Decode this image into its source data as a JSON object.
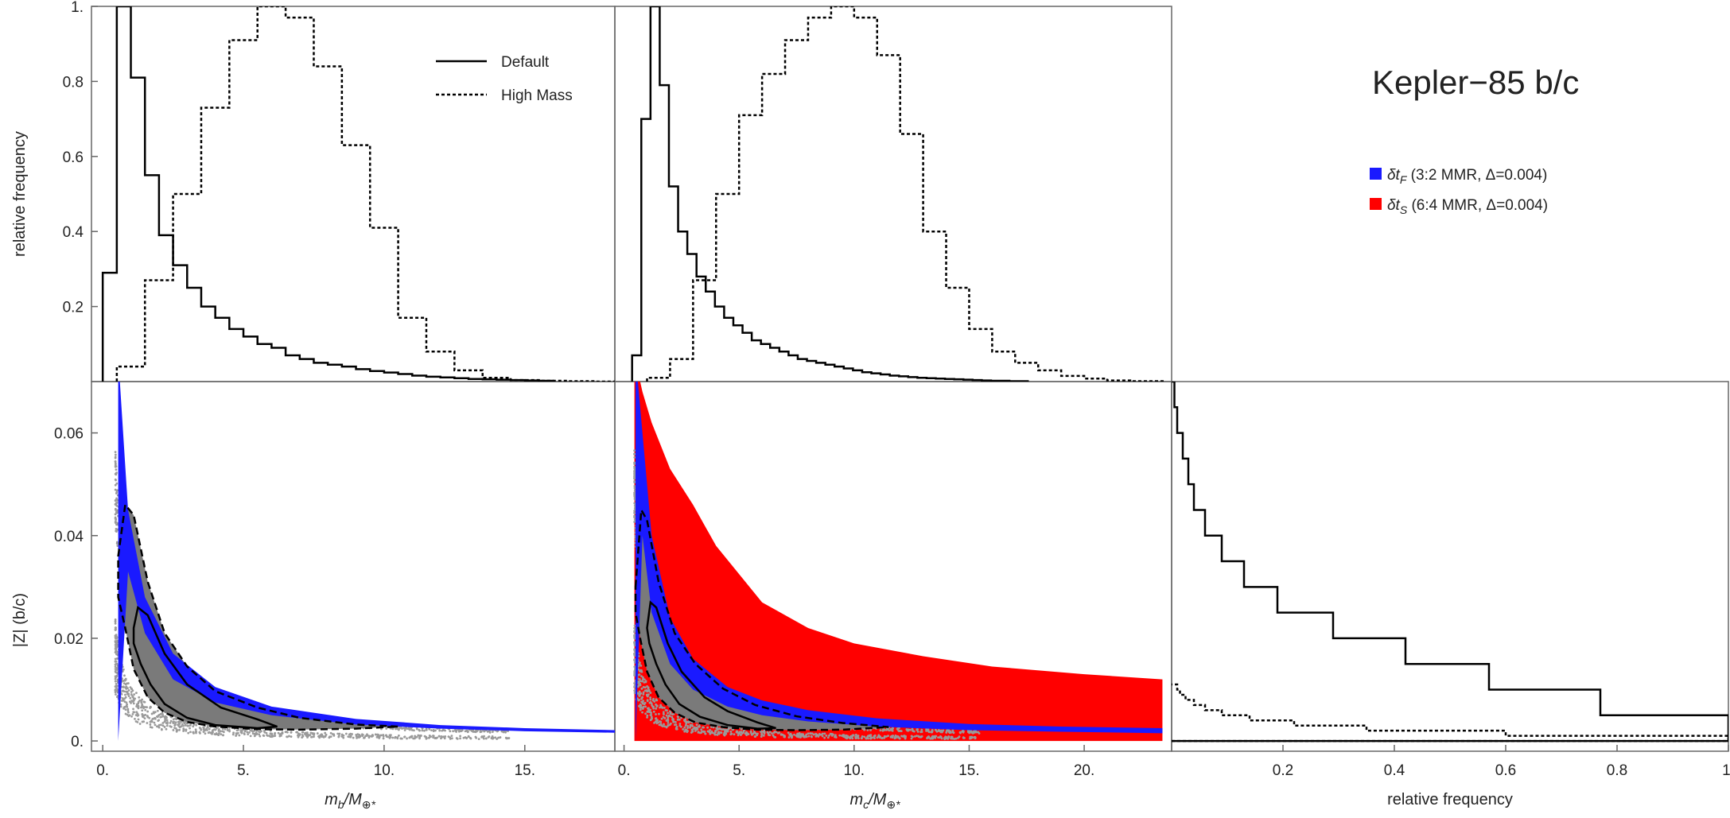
{
  "chart_data": [
    {
      "panel": "top-left",
      "type": "histogram",
      "title": "",
      "xlabel": "",
      "ylabel": "relative frequency",
      "xlim": [
        -0.4,
        18.2
      ],
      "ylim": [
        0,
        1.0
      ],
      "xticks": [],
      "yticks": [
        "0.2",
        "0.4",
        "0.6",
        "0.8",
        "1."
      ],
      "legend": {
        "placement": "top-right",
        "entries": [
          {
            "label": "Default",
            "style": "solid"
          },
          {
            "label": "High Mass",
            "style": "dotted"
          }
        ]
      },
      "series": [
        {
          "name": "Default",
          "style": "solid",
          "edges": [
            0,
            0.5,
            1,
            1.5,
            2,
            2.5,
            3,
            3.5,
            4,
            4.5,
            5,
            5.5,
            6,
            6.5,
            7,
            7.5,
            8,
            8.5,
            9,
            9.5,
            10,
            10.5,
            11,
            11.5,
            12,
            12.5,
            13,
            13.5,
            14,
            14.5,
            15,
            15.5,
            16
          ],
          "values": [
            0.29,
            1.0,
            0.81,
            0.55,
            0.39,
            0.31,
            0.25,
            0.2,
            0.17,
            0.14,
            0.12,
            0.1,
            0.09,
            0.07,
            0.06,
            0.05,
            0.045,
            0.04,
            0.033,
            0.028,
            0.024,
            0.02,
            0.016,
            0.013,
            0.011,
            0.009,
            0.007,
            0.006,
            0.005,
            0.004,
            0.003,
            0.002
          ]
        },
        {
          "name": "High Mass",
          "style": "dotted",
          "edges": [
            0.5,
            1.5,
            2.5,
            3.5,
            4.5,
            5.5,
            6.5,
            7.5,
            8.5,
            9.5,
            10.5,
            11.5,
            12.5,
            13.5,
            14.5,
            15.5,
            16.5,
            17.5,
            18.2
          ],
          "values": [
            0.04,
            0.27,
            0.5,
            0.73,
            0.91,
            1.0,
            0.97,
            0.84,
            0.63,
            0.41,
            0.17,
            0.08,
            0.03,
            0.01,
            0.004,
            0.002,
            0.001,
            0.0
          ]
        }
      ]
    },
    {
      "panel": "top-middle",
      "type": "histogram",
      "title": "",
      "xlabel": "",
      "ylabel": "",
      "xlim": [
        -0.4,
        23.8
      ],
      "ylim": [
        0,
        1.0
      ],
      "series": [
        {
          "name": "Default",
          "style": "solid",
          "edges": [
            0.35,
            0.75,
            1.15,
            1.55,
            1.95,
            2.35,
            2.75,
            3.15,
            3.55,
            3.95,
            4.35,
            4.75,
            5.15,
            5.55,
            5.95,
            6.35,
            6.75,
            7.15,
            7.55,
            7.95,
            8.35,
            8.75,
            9.15,
            9.55,
            9.95,
            10.35,
            10.75,
            11.15,
            11.55,
            11.95,
            12.35,
            12.75,
            13.15,
            13.55,
            13.95,
            14.35,
            14.75,
            15.15,
            15.55,
            15.95,
            16.35,
            16.75,
            17.15,
            17.55
          ],
          "values": [
            0.07,
            0.7,
            1.0,
            0.79,
            0.52,
            0.4,
            0.34,
            0.28,
            0.24,
            0.2,
            0.17,
            0.15,
            0.13,
            0.11,
            0.1,
            0.09,
            0.08,
            0.07,
            0.06,
            0.055,
            0.05,
            0.045,
            0.04,
            0.035,
            0.03,
            0.025,
            0.022,
            0.019,
            0.016,
            0.014,
            0.012,
            0.01,
            0.009,
            0.008,
            0.007,
            0.006,
            0.005,
            0.004,
            0.003,
            0.002,
            0.002,
            0.001,
            0.001
          ]
        },
        {
          "name": "High Mass",
          "style": "dotted",
          "edges": [
            1.0,
            2.0,
            3.0,
            4.0,
            5.0,
            6.0,
            7.0,
            8.0,
            9.0,
            10.0,
            11.0,
            12.0,
            13.0,
            14.0,
            15.0,
            16.0,
            17.0,
            18.0,
            19.0,
            20.0,
            21.0,
            22.0,
            23.5
          ],
          "values": [
            0.01,
            0.06,
            0.27,
            0.5,
            0.71,
            0.82,
            0.91,
            0.97,
            1.0,
            0.97,
            0.87,
            0.66,
            0.4,
            0.25,
            0.14,
            0.08,
            0.05,
            0.03,
            0.015,
            0.008,
            0.003,
            0.001
          ]
        }
      ]
    },
    {
      "panel": "bottom-left",
      "type": "scatter",
      "title": "",
      "xlabel": "m_b/M_⊕*",
      "ylabel": "|Z| (b/c)",
      "xlim": [
        -0.4,
        18.2
      ],
      "ylim": [
        -0.002,
        0.07
      ],
      "xticks": [
        "0.",
        "5.",
        "10.",
        "15."
      ],
      "yticks": [
        "0.",
        "0.02",
        "0.04",
        "0.06"
      ],
      "points_distribution": "gray point cloud of posterior samples concentrated along a decaying curve",
      "regions": [
        {
          "name": "δt_F (3:2 MMR, Δ=0.004)",
          "color": "#1a1aff",
          "x": [
            0.55,
            0.9,
            1.5,
            2.5,
            4,
            6,
            9,
            12,
            15,
            18.2
          ],
          "y_low": [
            0.0,
            0.033,
            0.021,
            0.012,
            0.0075,
            0.005,
            0.0032,
            0.0024,
            0.0019,
            0.0016
          ],
          "y_high": [
            0.075,
            0.045,
            0.028,
            0.017,
            0.0105,
            0.0067,
            0.0043,
            0.0031,
            0.0025,
            0.0021
          ]
        }
      ],
      "contours": [
        {
          "style": "solid",
          "x": [
            1.1,
            1.25,
            1.6,
            2.2,
            3.0,
            4.2,
            5.5,
            6.2,
            5.5,
            4.0,
            3.0,
            2.2,
            1.7,
            1.35,
            1.1,
            1.1
          ],
          "y": [
            0.022,
            0.026,
            0.0245,
            0.017,
            0.011,
            0.0065,
            0.0042,
            0.0028,
            0.0025,
            0.0031,
            0.0045,
            0.0072,
            0.011,
            0.015,
            0.019,
            0.022
          ]
        },
        {
          "style": "dashed",
          "x": [
            0.55,
            0.8,
            1.1,
            1.6,
            2.2,
            3.0,
            4.0,
            5.5,
            7.0,
            9.0,
            10.5,
            9.0,
            7.0,
            5.5,
            4.0,
            3.0,
            2.2,
            1.6,
            1.1,
            0.8,
            0.55,
            0.55
          ],
          "y": [
            0.036,
            0.046,
            0.044,
            0.031,
            0.021,
            0.0145,
            0.0097,
            0.0065,
            0.0045,
            0.0032,
            0.0028,
            0.0024,
            0.0022,
            0.0023,
            0.0028,
            0.0037,
            0.0055,
            0.0085,
            0.014,
            0.022,
            0.028,
            0.036
          ]
        }
      ]
    },
    {
      "panel": "bottom-middle",
      "type": "scatter",
      "title": "",
      "xlabel": "m_c/M_⊕*",
      "ylabel": "",
      "xlim": [
        -0.4,
        23.8
      ],
      "ylim": [
        -0.002,
        0.07
      ],
      "xticks": [
        "0.",
        "5.",
        "10.",
        "15.",
        "20."
      ],
      "points_distribution": "gray point cloud of posterior samples concentrated along a decaying curve",
      "regions": [
        {
          "name": "δt_S (6:4 MMR, Δ=0.004)",
          "color": "#ff0000",
          "x": [
            0.45,
            0.8,
            1.2,
            2,
            3,
            4,
            6,
            8,
            10,
            13,
            16,
            20,
            23.4
          ],
          "y_low": [
            0,
            0,
            0,
            0,
            0,
            0,
            0,
            0,
            0,
            0,
            0,
            0,
            0
          ],
          "y_high": [
            0.075,
            0.068,
            0.062,
            0.053,
            0.046,
            0.038,
            0.027,
            0.022,
            0.019,
            0.0165,
            0.0145,
            0.013,
            0.012
          ]
        },
        {
          "name": "δt_F (3:2 MMR, Δ=0.004)",
          "color": "#1a1aff",
          "x": [
            0.5,
            0.8,
            1.2,
            2,
            3,
            4.5,
            6,
            8,
            11,
            15,
            19,
            23.4
          ],
          "y_low": [
            0.0,
            0.04,
            0.025,
            0.015,
            0.01,
            0.0067,
            0.005,
            0.0038,
            0.0028,
            0.0021,
            0.0018,
            0.0015
          ],
          "y_high": [
            0.075,
            0.06,
            0.04,
            0.024,
            0.016,
            0.0105,
            0.0079,
            0.006,
            0.0044,
            0.0033,
            0.0028,
            0.0025
          ]
        }
      ],
      "contours": [
        {
          "style": "solid",
          "x": [
            1.0,
            1.15,
            1.4,
            1.9,
            2.5,
            3.5,
            4.5,
            5.8,
            6.6,
            5.8,
            4.5,
            3.3,
            2.4,
            1.8,
            1.4,
            1.1,
            1.0
          ],
          "y": [
            0.022,
            0.027,
            0.026,
            0.019,
            0.0135,
            0.0085,
            0.0058,
            0.0036,
            0.0025,
            0.0024,
            0.0031,
            0.0047,
            0.0072,
            0.011,
            0.015,
            0.019,
            0.022
          ]
        },
        {
          "style": "dashed",
          "x": [
            0.5,
            0.75,
            1.0,
            1.5,
            2.2,
            3.1,
            4.3,
            5.7,
            7.5,
            9.5,
            11.5,
            9.5,
            7.5,
            5.7,
            4.3,
            3.1,
            2.2,
            1.5,
            1.0,
            0.7,
            0.5,
            0.5
          ],
          "y": [
            0.03,
            0.045,
            0.043,
            0.031,
            0.021,
            0.015,
            0.0102,
            0.007,
            0.0048,
            0.0035,
            0.0027,
            0.0022,
            0.0021,
            0.0022,
            0.0027,
            0.0036,
            0.0055,
            0.0085,
            0.0135,
            0.02,
            0.025,
            0.03
          ]
        }
      ]
    },
    {
      "panel": "bottom-right",
      "type": "histogram",
      "orientation": "horizontal",
      "title": "",
      "xlabel": "relative frequency",
      "ylabel": "",
      "xlim": [
        0,
        1.0
      ],
      "ylim": [
        -0.002,
        0.07
      ],
      "xticks": [
        "0.2",
        "0.4",
        "0.6",
        "0.8",
        "1."
      ],
      "series": [
        {
          "name": "Default",
          "style": "solid",
          "bin_edges": [
            0.0,
            0.005,
            0.01,
            0.015,
            0.02,
            0.025,
            0.03,
            0.035,
            0.04,
            0.045,
            0.05,
            0.055,
            0.06,
            0.065,
            0.07
          ],
          "values": [
            1.0,
            0.77,
            0.57,
            0.42,
            0.29,
            0.19,
            0.13,
            0.09,
            0.06,
            0.04,
            0.03,
            0.02,
            0.01,
            0.005
          ]
        },
        {
          "name": "High Mass",
          "style": "dotted",
          "bin_edges": [
            0.0,
            0.001,
            0.002,
            0.003,
            0.004,
            0.005,
            0.006,
            0.007,
            0.008,
            0.009,
            0.01,
            0.011
          ],
          "values": [
            1.0,
            0.6,
            0.35,
            0.22,
            0.14,
            0.09,
            0.06,
            0.04,
            0.025,
            0.015,
            0.01
          ]
        }
      ]
    }
  ],
  "figure": {
    "title": "Kepler−85 b/c",
    "legend": [
      {
        "label_symbol": "δt",
        "label_subscript": "F",
        "label_rest": " (3:2 MMR, Δ=0.004)",
        "color": "#1a1aff"
      },
      {
        "label_symbol": "δt",
        "label_subscript": "S",
        "label_rest": " (6:4 MMR, Δ=0.004)",
        "color": "#ff0000"
      }
    ],
    "shared_ylabel_bottom": "|Z| (b/c)",
    "shared_ylabel_top": "relative frequency"
  }
}
